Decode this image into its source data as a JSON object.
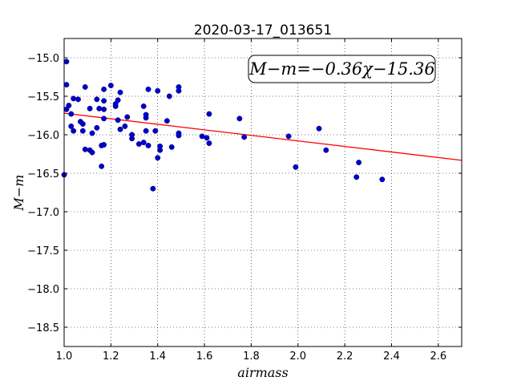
{
  "chart_data": {
    "type": "scatter",
    "title": "2020-03-17_013651",
    "xlabel": "airmass",
    "ylabel": "M−m",
    "xlim": [
      1.0,
      2.7
    ],
    "ylim": [
      -18.75,
      -14.75
    ],
    "y_inverted": true,
    "grid": true,
    "x_ticks": [
      1.0,
      1.2,
      1.4,
      1.6,
      1.8,
      2.0,
      2.2,
      2.4,
      2.6
    ],
    "x_tick_labels": [
      "1.0",
      "1.2",
      "1.4",
      "1.6",
      "1.8",
      "2.0",
      "2.2",
      "2.4",
      "2.6"
    ],
    "y_ticks": [
      -15.0,
      -15.5,
      -16.0,
      -16.5,
      -17.0,
      -17.5,
      -18.0,
      -18.5
    ],
    "y_tick_labels": [
      "−15.0",
      "−15.5",
      "−16.0",
      "−16.5",
      "−17.0",
      "−17.5",
      "−18.0",
      "−18.5"
    ],
    "annotation": "M−m=−0.36χ−15.36",
    "fit": {
      "slope": -0.36,
      "intercept": -15.36,
      "color": "#ff0000"
    },
    "point_color": "#0000cc",
    "points": [
      [
        1.0,
        -16.52
      ],
      [
        1.01,
        -15.05
      ],
      [
        1.01,
        -15.35
      ],
      [
        1.01,
        -15.67
      ],
      [
        1.02,
        -15.62
      ],
      [
        1.03,
        -15.73
      ],
      [
        1.03,
        -15.89
      ],
      [
        1.04,
        -15.95
      ],
      [
        1.04,
        -15.53
      ],
      [
        1.06,
        -15.54
      ],
      [
        1.07,
        -15.83
      ],
      [
        1.08,
        -15.86
      ],
      [
        1.08,
        -15.95
      ],
      [
        1.09,
        -15.38
      ],
      [
        1.09,
        -16.19
      ],
      [
        1.11,
        -15.66
      ],
      [
        1.11,
        -16.2
      ],
      [
        1.12,
        -16.23
      ],
      [
        1.12,
        -15.98
      ],
      [
        1.14,
        -15.91
      ],
      [
        1.14,
        -15.54
      ],
      [
        1.15,
        -15.66
      ],
      [
        1.16,
        -16.14
      ],
      [
        1.16,
        -16.41
      ],
      [
        1.17,
        -15.79
      ],
      [
        1.17,
        -15.67
      ],
      [
        1.17,
        -15.56
      ],
      [
        1.17,
        -15.41
      ],
      [
        1.17,
        -16.13
      ],
      [
        1.2,
        -15.36
      ],
      [
        1.22,
        -15.63
      ],
      [
        1.22,
        -15.6
      ],
      [
        1.23,
        -15.81
      ],
      [
        1.23,
        -15.55
      ],
      [
        1.24,
        -15.45
      ],
      [
        1.24,
        -15.93
      ],
      [
        1.26,
        -15.89
      ],
      [
        1.27,
        -15.77
      ],
      [
        1.29,
        -16.05
      ],
      [
        1.29,
        -16.0
      ],
      [
        1.32,
        -16.12
      ],
      [
        1.34,
        -15.63
      ],
      [
        1.34,
        -16.1
      ],
      [
        1.35,
        -15.95
      ],
      [
        1.35,
        -15.74
      ],
      [
        1.35,
        -15.78
      ],
      [
        1.36,
        -15.41
      ],
      [
        1.36,
        -16.14
      ],
      [
        1.38,
        -16.7
      ],
      [
        1.39,
        -15.95
      ],
      [
        1.4,
        -16.3
      ],
      [
        1.4,
        -15.43
      ],
      [
        1.41,
        -16.15
      ],
      [
        1.41,
        -16.2
      ],
      [
        1.44,
        -15.82
      ],
      [
        1.45,
        -15.5
      ],
      [
        1.46,
        -16.16
      ],
      [
        1.49,
        -15.98
      ],
      [
        1.49,
        -16.01
      ],
      [
        1.49,
        -15.38
      ],
      [
        1.49,
        -15.43
      ],
      [
        1.59,
        -16.02
      ],
      [
        1.61,
        -16.04
      ],
      [
        1.62,
        -16.11
      ],
      [
        1.62,
        -15.73
      ],
      [
        1.75,
        -15.79
      ],
      [
        1.77,
        -16.03
      ],
      [
        1.96,
        -16.02
      ],
      [
        1.99,
        -16.42
      ],
      [
        2.09,
        -15.92
      ],
      [
        2.12,
        -16.2
      ],
      [
        2.25,
        -16.55
      ],
      [
        2.26,
        -16.36
      ],
      [
        2.36,
        -16.58
      ]
    ]
  }
}
